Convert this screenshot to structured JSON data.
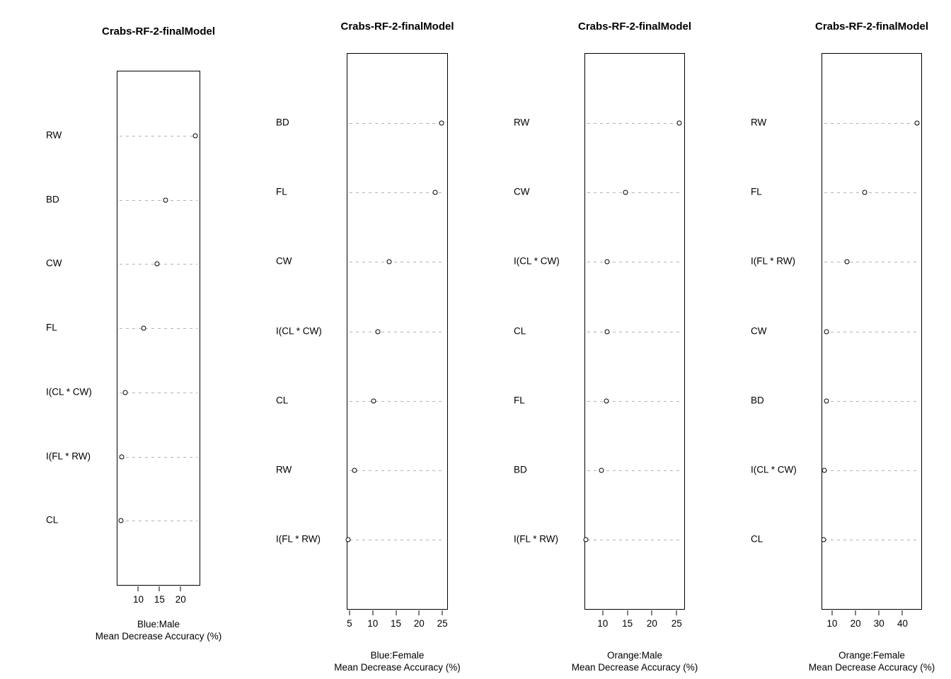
{
  "page": {
    "background": "#ffffff",
    "text_color": "#000000",
    "grid_color": "#b3b3b3"
  },
  "chart_data": [
    {
      "type": "scatter",
      "variant": "dotchart",
      "title": "Crabs-RF-2-finalModel",
      "categories": [
        "RW",
        "BD",
        "CW",
        "FL",
        "I(CL * CW)",
        "I(FL * RW)",
        "CL"
      ],
      "values": [
        23.3,
        16.2,
        14.3,
        11.1,
        6.7,
        5.9,
        5.7
      ],
      "x_ticks": [
        10,
        15,
        20
      ],
      "xlim": [
        4.9,
        24.3
      ],
      "legend": "Blue:Male",
      "xlabel": "Mean Decrease Accuracy (%)",
      "ylabel": "",
      "grid": "dashed-horizontal",
      "point_style": "open-circle",
      "point_color": "#000000"
    },
    {
      "type": "scatter",
      "variant": "dotchart",
      "title": "Crabs-RF-2-finalModel",
      "categories": [
        "BD",
        "FL",
        "CW",
        "I(CL * CW)",
        "CL",
        "RW",
        "I(FL * RW)"
      ],
      "values": [
        24.7,
        23.3,
        13.4,
        10.9,
        10.1,
        5.9,
        4.5
      ],
      "x_ticks": [
        5,
        10,
        15,
        20,
        25
      ],
      "xlim": [
        4.4,
        25.9
      ],
      "legend": "Blue:Female",
      "xlabel": "Mean Decrease Accuracy (%)",
      "ylabel": "",
      "grid": "dashed-horizontal",
      "point_style": "open-circle",
      "point_color": "#000000"
    },
    {
      "type": "scatter",
      "variant": "dotchart",
      "title": "Crabs-RF-2-finalModel",
      "categories": [
        "RW",
        "CW",
        "I(CL * CW)",
        "CL",
        "FL",
        "BD",
        "I(FL * RW)"
      ],
      "values": [
        25.4,
        14.5,
        10.8,
        10.8,
        10.6,
        9.6,
        6.5
      ],
      "x_ticks": [
        10,
        15,
        20,
        25
      ],
      "xlim": [
        6.3,
        26.4
      ],
      "legend": "Orange:Male",
      "xlabel": "Mean Decrease Accuracy (%)",
      "ylabel": "",
      "grid": "dashed-horizontal",
      "point_style": "open-circle",
      "point_color": "#000000"
    },
    {
      "type": "scatter",
      "variant": "dotchart",
      "title": "Crabs-RF-2-finalModel",
      "categories": [
        "RW",
        "FL",
        "I(FL * RW)",
        "CW",
        "BD",
        "I(CL * CW)",
        "CL"
      ],
      "values": [
        45.9,
        23.6,
        15.9,
        7.3,
        7.3,
        6.4,
        6.1
      ],
      "x_ticks": [
        10,
        20,
        30,
        40
      ],
      "xlim": [
        5.5,
        47.7
      ],
      "legend": "Orange:Female",
      "xlabel": "Mean Decrease Accuracy (%)",
      "ylabel": "",
      "grid": "dashed-horizontal",
      "point_style": "open-circle",
      "point_color": "#000000"
    }
  ]
}
